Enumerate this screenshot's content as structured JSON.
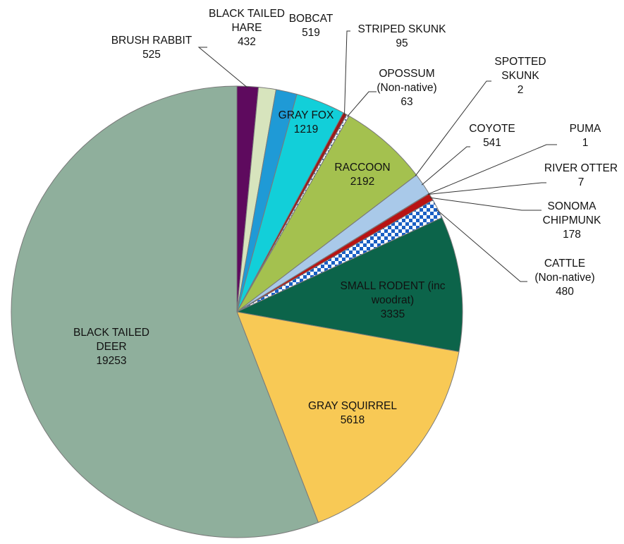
{
  "chart_data": {
    "type": "pie",
    "title": "",
    "start": "top, clockwise",
    "slices": [
      {
        "name": "BRUSH RABBIT",
        "label_lines": [
          "BRUSH RABBIT"
        ],
        "value": 525,
        "value_text": "525",
        "color": "#5e0a5e"
      },
      {
        "name": "BLACK TAILED HARE",
        "label_lines": [
          "BLACK TAILED",
          "HARE"
        ],
        "value": 432,
        "value_text": "432",
        "color": "#d7e4bd"
      },
      {
        "name": "BOBCAT",
        "label_lines": [
          "BOBCAT"
        ],
        "value": 519,
        "value_text": "519",
        "color": "#1f9ad6"
      },
      {
        "name": "GRAY FOX",
        "label_lines": [
          "GRAY FOX"
        ],
        "value": 1219,
        "value_text": "1219",
        "color": "#12cfd9"
      },
      {
        "name": "STRIPED SKUNK",
        "label_lines": [
          "STRIPED SKUNK"
        ],
        "value": 95,
        "value_text": "95",
        "color": "#9b1c1c"
      },
      {
        "name": "OPOSSUM (Non-native)",
        "label_lines": [
          "OPOSSUM",
          "(Non-native)"
        ],
        "value": 63,
        "value_text": "63",
        "color": "#6a8fc4",
        "pattern": "dots"
      },
      {
        "name": "RACCOON",
        "label_lines": [
          "RACCOON"
        ],
        "value": 2192,
        "value_text": "2192",
        "color": "#a4c14f"
      },
      {
        "name": "SPOTTED SKUNK",
        "label_lines": [
          "SPOTTED",
          "SKUNK"
        ],
        "value": 2,
        "value_text": "2",
        "color": "#7f7f7f"
      },
      {
        "name": "COYOTE",
        "label_lines": [
          "COYOTE"
        ],
        "value": 541,
        "value_text": "541",
        "color": "#a9c9e9"
      },
      {
        "name": "PUMA",
        "label_lines": [
          "PUMA"
        ],
        "value": 1,
        "value_text": "1",
        "color": "#4f81bd"
      },
      {
        "name": "RIVER OTTER",
        "label_lines": [
          "RIVER OTTER"
        ],
        "value": 7,
        "value_text": "7",
        "color": "#1f3864"
      },
      {
        "name": "SONOMA CHIPMUNK",
        "label_lines": [
          "SONOMA",
          "CHIPMUNK"
        ],
        "value": 178,
        "value_text": "178",
        "color": "#b81414"
      },
      {
        "name": "CATTLE (Non-native)",
        "label_lines": [
          "CATTLE",
          "(Non-native)"
        ],
        "value": 480,
        "value_text": "480",
        "color": "#1a5fc4",
        "pattern": "checker"
      },
      {
        "name": "SMALL RODENT (inc woodrat)",
        "label_lines": [
          "SMALL RODENT (inc",
          "woodrat)"
        ],
        "value": 3335,
        "value_text": "3335",
        "color": "#0c644a"
      },
      {
        "name": "GRAY SQUIRREL",
        "label_lines": [
          "GRAY SQUIRREL"
        ],
        "value": 5618,
        "value_text": "5618",
        "color": "#f8c955"
      },
      {
        "name": "BLACK TAILED DEER",
        "label_lines": [
          "BLACK TAILED",
          "DEER"
        ],
        "value": 19253,
        "value_text": "19253",
        "color": "#8faf9c"
      }
    ]
  }
}
